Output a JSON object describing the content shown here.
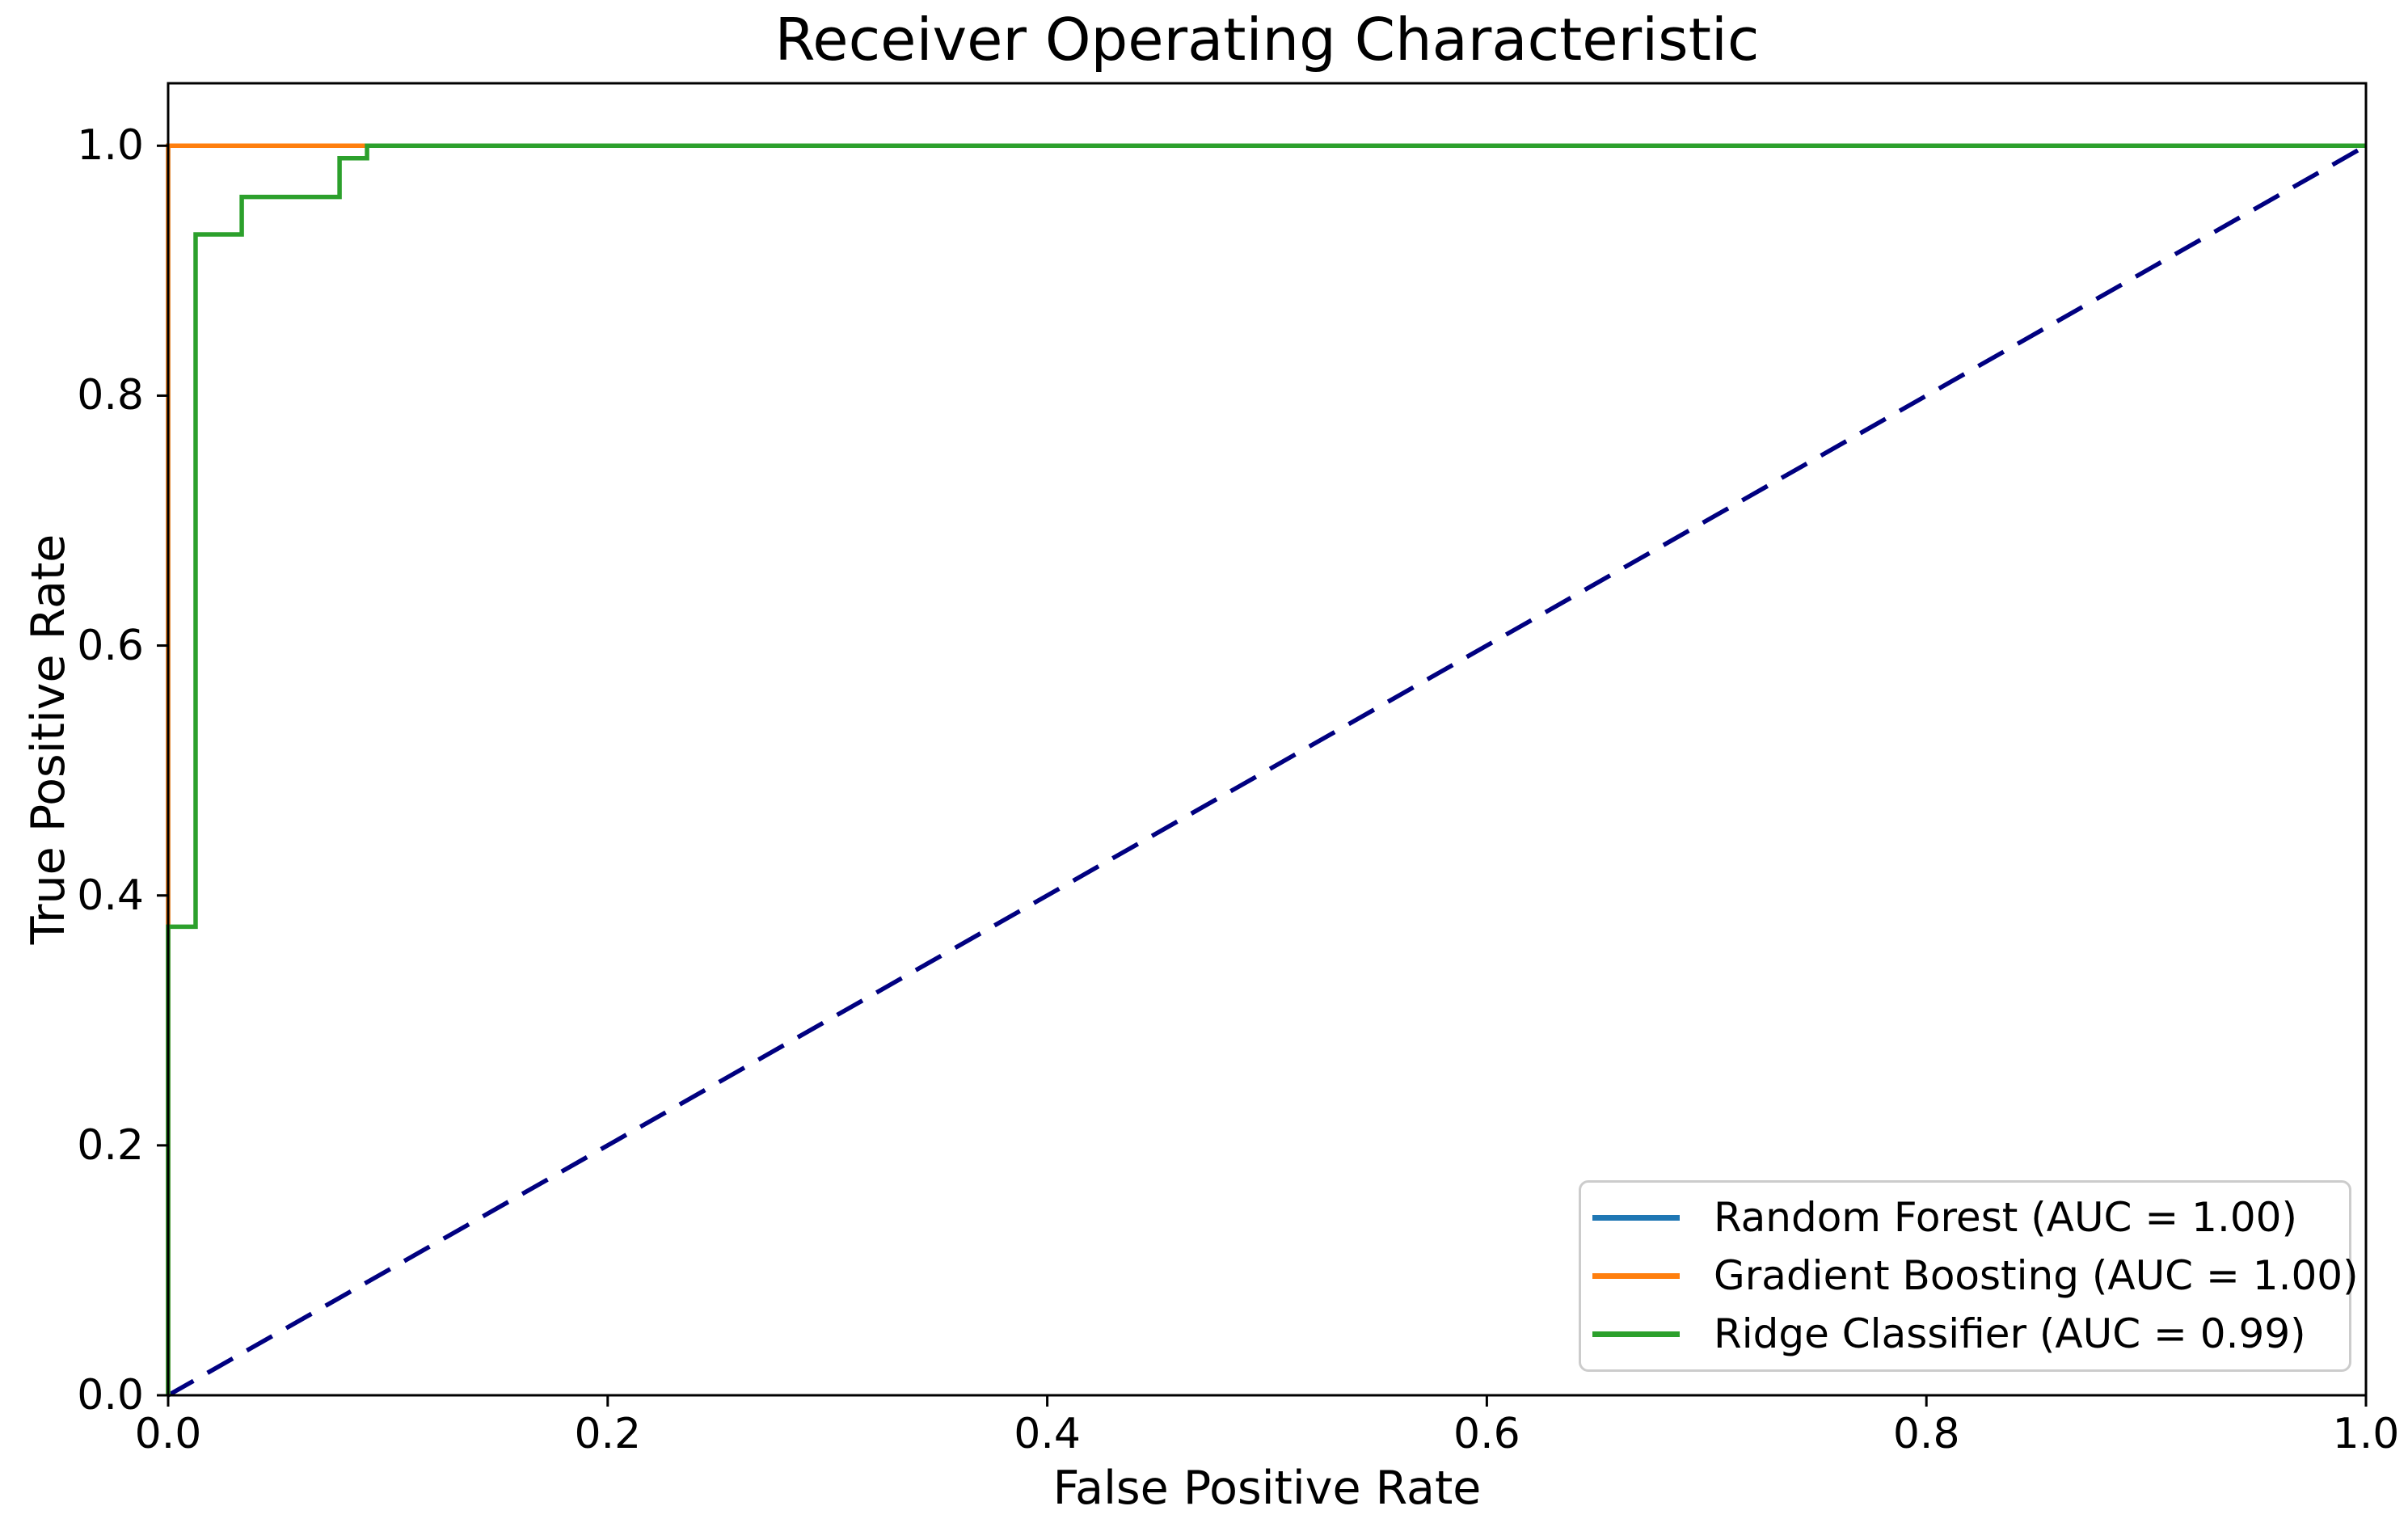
{
  "figure": {
    "background": "#ffffff",
    "text_color": "#000000",
    "spine_color": "#000000"
  },
  "chart_data": {
    "type": "line",
    "subtype": "roc-curve",
    "title": "Receiver Operating Characteristic",
    "xlabel": "False Positive Rate",
    "ylabel": "True Positive Rate",
    "xlim": [
      0.0,
      1.0
    ],
    "ylim": [
      0.0,
      1.05
    ],
    "grid": false,
    "legend_position": "lower right",
    "x_ticks": {
      "values": [
        0.0,
        0.2,
        0.4,
        0.6,
        0.8,
        1.0
      ],
      "labels": [
        "0.0",
        "0.2",
        "0.4",
        "0.6",
        "0.8",
        "1.0"
      ]
    },
    "y_ticks": {
      "values": [
        0.0,
        0.2,
        0.4,
        0.6,
        0.8,
        1.0
      ],
      "labels": [
        "0.0",
        "0.2",
        "0.4",
        "0.6",
        "0.8",
        "1.0"
      ]
    },
    "reference_line": {
      "name": "chance-diagonal",
      "color": "#000080",
      "style": "dashed",
      "linewidth": 5.5,
      "points": [
        [
          0.0,
          0.0
        ],
        [
          1.0,
          1.0
        ]
      ]
    },
    "series": [
      {
        "name": "Random Forest",
        "label": "Random Forest (AUC = 1.00)",
        "auc": "1.00",
        "color": "#1f77b4",
        "style": "solid",
        "linewidth": 5.5,
        "points": [
          [
            0.0,
            0.0
          ],
          [
            0.0,
            1.0
          ],
          [
            1.0,
            1.0
          ]
        ]
      },
      {
        "name": "Gradient Boosting",
        "label": "Gradient Boosting (AUC = 1.00)",
        "auc": "1.00",
        "color": "#ff7f0e",
        "style": "solid",
        "linewidth": 5.5,
        "points": [
          [
            0.0,
            0.0
          ],
          [
            0.0,
            1.0
          ],
          [
            1.0,
            1.0
          ]
        ]
      },
      {
        "name": "Ridge Classifier",
        "label": "Ridge Classifier (AUC = 0.99)",
        "auc": "0.99",
        "color": "#2ca02c",
        "style": "solid",
        "linewidth": 5.5,
        "points": [
          [
            0.0,
            0.0
          ],
          [
            0.0,
            0.375
          ],
          [
            0.0125,
            0.375
          ],
          [
            0.0125,
            0.929
          ],
          [
            0.0335,
            0.929
          ],
          [
            0.0335,
            0.959
          ],
          [
            0.078,
            0.959
          ],
          [
            0.078,
            0.99
          ],
          [
            0.0905,
            0.99
          ],
          [
            0.0905,
            1.0
          ],
          [
            1.0,
            1.0
          ]
        ]
      }
    ]
  }
}
